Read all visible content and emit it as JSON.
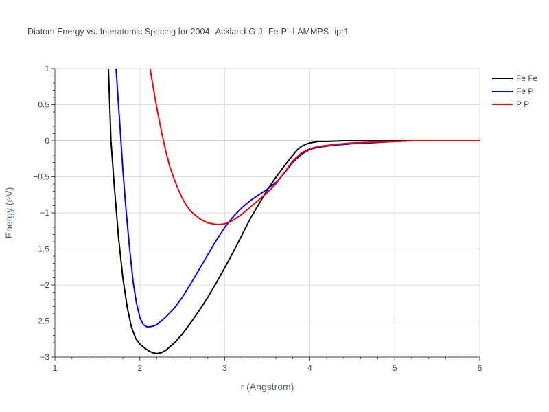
{
  "chart_data": {
    "type": "line",
    "title": "Diatom Energy vs. Interatomic Spacing for 2004--Ackland-G-J--Fe-P--LAMMPS--ipr1",
    "xlabel": "r (Angstrom)",
    "ylabel": "Energy (eV)",
    "xlim": [
      1,
      6
    ],
    "ylim": [
      -3,
      1
    ],
    "xticks": [
      1,
      2,
      3,
      4,
      5,
      6
    ],
    "xtick_labels": [
      "1",
      "2",
      "3",
      "4",
      "5",
      "6"
    ],
    "yticks": [
      1,
      0.5,
      0,
      -0.5,
      -1,
      -1.5,
      -2,
      -2.5,
      -3
    ],
    "ytick_labels": [
      "1",
      "0.5",
      "0",
      "−0.5",
      "−1",
      "−1.5",
      "−2",
      "−2.5",
      "−3"
    ],
    "grid": true,
    "legend_position": "top-right",
    "series": [
      {
        "name": "Fe Fe",
        "color": "#000000",
        "x": [
          1.63,
          1.66,
          1.7,
          1.75,
          1.8,
          1.85,
          1.9,
          1.95,
          2.0,
          2.05,
          2.1,
          2.15,
          2.2,
          2.25,
          2.3,
          2.4,
          2.5,
          2.6,
          2.7,
          2.8,
          2.9,
          3.0,
          3.1,
          3.2,
          3.3,
          3.4,
          3.5,
          3.6,
          3.7,
          3.8,
          3.85,
          3.9,
          3.95,
          4.0,
          4.05,
          4.1,
          4.2,
          4.4,
          4.6,
          4.8,
          5.0,
          5.2,
          5.5,
          6.0
        ],
        "y": [
          1.0,
          0.0,
          -0.65,
          -1.35,
          -1.9,
          -2.3,
          -2.58,
          -2.74,
          -2.82,
          -2.87,
          -2.91,
          -2.94,
          -2.95,
          -2.94,
          -2.91,
          -2.81,
          -2.68,
          -2.52,
          -2.35,
          -2.17,
          -1.97,
          -1.76,
          -1.54,
          -1.31,
          -1.08,
          -0.88,
          -0.68,
          -0.51,
          -0.35,
          -0.2,
          -0.13,
          -0.08,
          -0.05,
          -0.03,
          -0.02,
          -0.01,
          -0.01,
          0.0,
          0.0,
          0.0,
          0.0,
          0.0,
          0.0,
          0.0
        ]
      },
      {
        "name": "Fe P",
        "color": "#0000ff",
        "x": [
          1.72,
          1.76,
          1.8,
          1.84,
          1.88,
          1.92,
          1.96,
          2.0,
          2.04,
          2.08,
          2.12,
          2.16,
          2.2,
          2.3,
          2.4,
          2.5,
          2.6,
          2.7,
          2.8,
          2.9,
          3.0,
          3.1,
          3.2,
          3.3,
          3.4,
          3.5,
          3.6,
          3.7,
          3.8,
          3.9,
          4.0,
          4.1,
          4.3,
          4.5,
          4.7,
          5.0,
          5.2,
          6.0
        ],
        "y": [
          1.0,
          0.3,
          -0.4,
          -1.0,
          -1.5,
          -1.95,
          -2.25,
          -2.45,
          -2.55,
          -2.58,
          -2.58,
          -2.57,
          -2.55,
          -2.45,
          -2.33,
          -2.17,
          -1.98,
          -1.78,
          -1.58,
          -1.38,
          -1.2,
          -1.05,
          -0.93,
          -0.83,
          -0.75,
          -0.67,
          -0.58,
          -0.45,
          -0.3,
          -0.19,
          -0.12,
          -0.09,
          -0.06,
          -0.04,
          -0.03,
          -0.01,
          0.0,
          0.0
        ]
      },
      {
        "name": "P P",
        "color": "#ff0000",
        "x": [
          2.12,
          2.16,
          2.2,
          2.25,
          2.3,
          2.35,
          2.4,
          2.45,
          2.5,
          2.55,
          2.6,
          2.7,
          2.8,
          2.9,
          2.95,
          3.0,
          3.05,
          3.1,
          3.2,
          3.3,
          3.4,
          3.5,
          3.6,
          3.7,
          3.75,
          3.8,
          3.9,
          4.0,
          4.1,
          4.3,
          4.5,
          4.7,
          5.0,
          5.2,
          6.0
        ],
        "y": [
          1.0,
          0.72,
          0.45,
          0.15,
          -0.12,
          -0.35,
          -0.52,
          -0.67,
          -0.8,
          -0.9,
          -0.98,
          -1.08,
          -1.14,
          -1.16,
          -1.16,
          -1.15,
          -1.13,
          -1.1,
          -1.02,
          -0.92,
          -0.82,
          -0.72,
          -0.6,
          -0.44,
          -0.36,
          -0.28,
          -0.17,
          -0.11,
          -0.08,
          -0.05,
          -0.03,
          -0.02,
          -0.01,
          0.0,
          0.0
        ]
      }
    ]
  }
}
